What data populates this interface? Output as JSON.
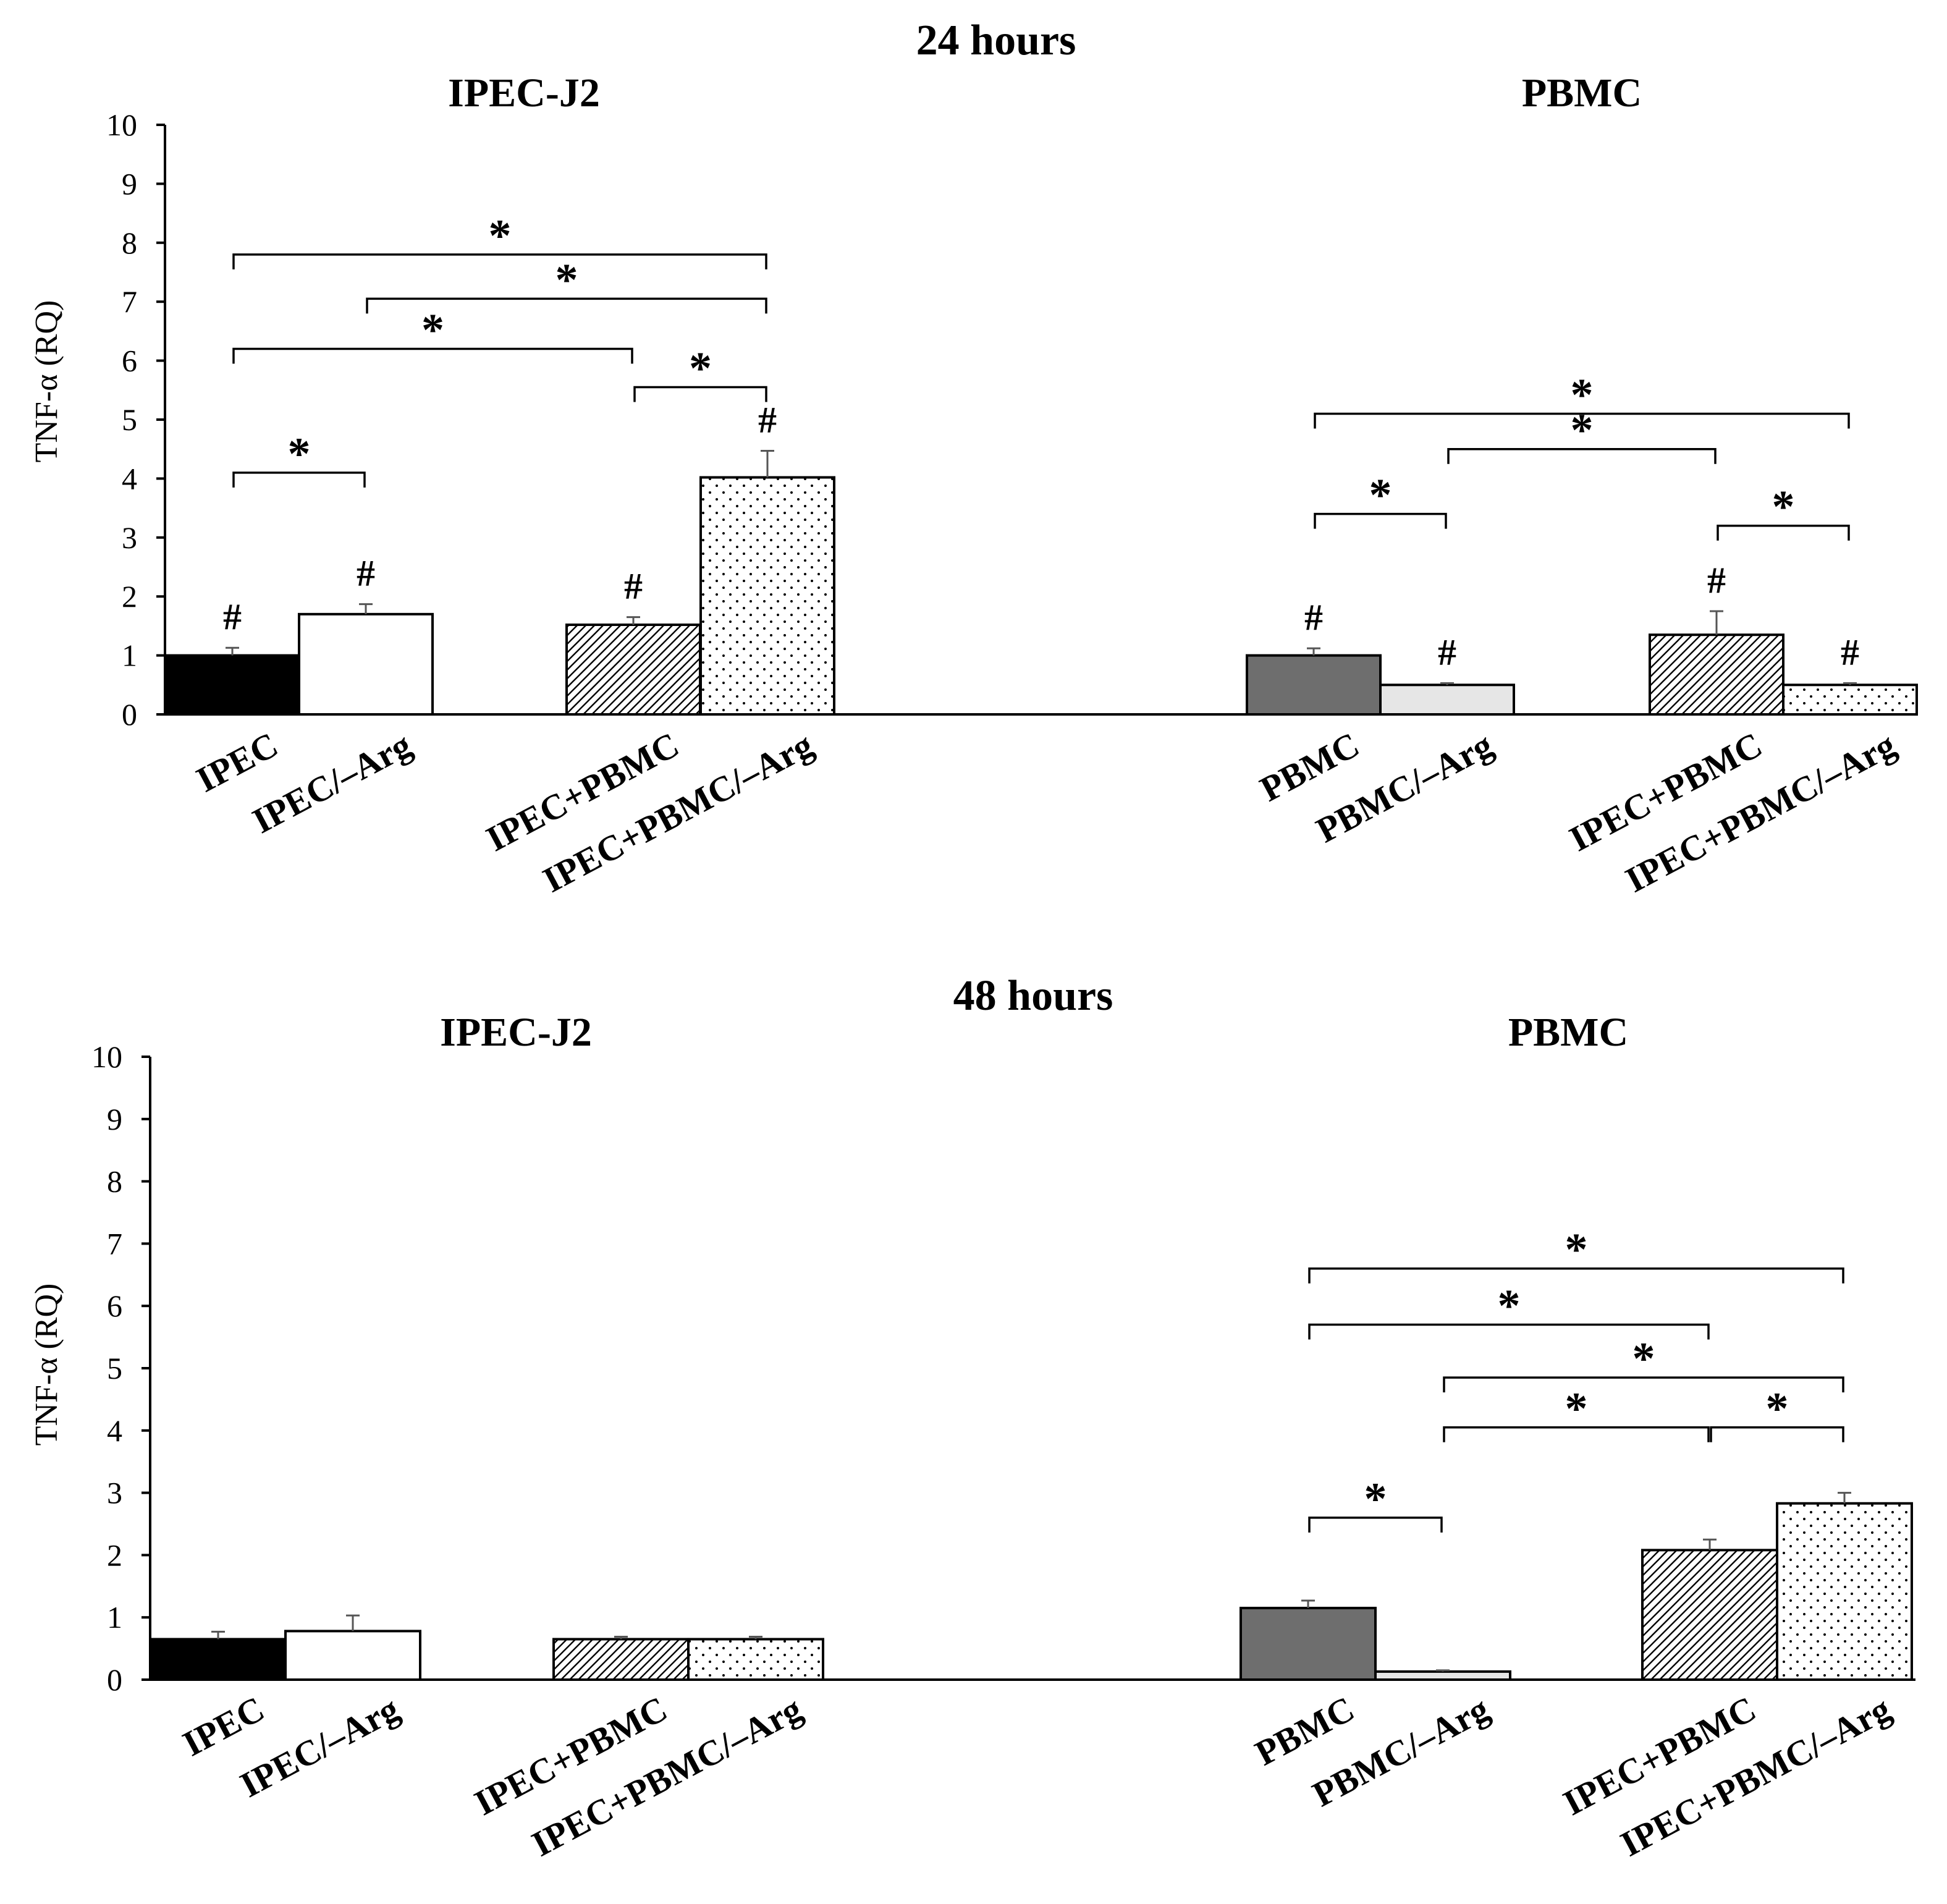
{
  "colors": {
    "black_bar": "#000000",
    "white_bar": "#ffffff",
    "dark_gray_bar": "#6e6e6e",
    "light_gray_bar": "#e6e6e6"
  },
  "chart_data": [
    {
      "type": "bar",
      "panel_title": "24 hours",
      "ylabel": "TNF-α (RQ)",
      "ylim": [
        0,
        10
      ],
      "yticks": [
        "0",
        "1",
        "2",
        "3",
        "4",
        "5",
        "6",
        "7",
        "8",
        "9",
        "10"
      ],
      "groups": [
        {
          "title": "IPEC-J2",
          "bars": [
            {
              "label": "IPEC",
              "value": 1.0,
              "error": 0.13,
              "fill": "black",
              "mark": "#"
            },
            {
              "label": "IPEC/–Arg",
              "value": 1.7,
              "error": 0.17,
              "fill": "white",
              "mark": "#"
            },
            {
              "label": "IPEC+PBMC",
              "value": 1.52,
              "error": 0.13,
              "fill": "hatch",
              "mark": "#"
            },
            {
              "label": "IPEC+PBMC/–Arg",
              "value": 4.02,
              "error": 0.45,
              "fill": "dots",
              "mark": "#"
            }
          ],
          "brackets": [
            {
              "from": 0,
              "to": 1,
              "level": 4.1,
              "mark": "*"
            },
            {
              "from": 2,
              "to": 3,
              "level": 5.55,
              "mark": "*"
            },
            {
              "from": 0,
              "to": 2,
              "level": 6.2,
              "mark": "*"
            },
            {
              "from": 1,
              "to": 3,
              "level": 7.05,
              "mark": "*"
            },
            {
              "from": 0,
              "to": 3,
              "level": 7.8,
              "mark": "*"
            }
          ]
        },
        {
          "title": "PBMC",
          "bars": [
            {
              "label": "PBMC",
              "value": 1.0,
              "error": 0.12,
              "fill": "darkgray",
              "mark": "#"
            },
            {
              "label": "PBMC/–Arg",
              "value": 0.5,
              "error": 0.03,
              "fill": "lightgray",
              "mark": "#"
            },
            {
              "label": "IPEC+PBMC",
              "value": 1.35,
              "error": 0.4,
              "fill": "hatch",
              "mark": "#"
            },
            {
              "label": "IPEC+PBMC/–Arg",
              "value": 0.5,
              "error": 0.03,
              "fill": "dots",
              "mark": "#"
            }
          ],
          "brackets": [
            {
              "from": 0,
              "to": 1,
              "level": 3.4,
              "mark": "*"
            },
            {
              "from": 2,
              "to": 3,
              "level": 3.2,
              "mark": "*"
            },
            {
              "from": 1,
              "to": 2,
              "level": 4.5,
              "mark": "*"
            },
            {
              "from": 0,
              "to": 3,
              "level": 5.1,
              "mark": "*"
            }
          ]
        }
      ]
    },
    {
      "type": "bar",
      "panel_title": "48 hours",
      "ylabel": "TNF-α (RQ)",
      "ylim": [
        0,
        10
      ],
      "yticks": [
        "0",
        "1",
        "2",
        "3",
        "4",
        "5",
        "6",
        "7",
        "8",
        "9",
        "10"
      ],
      "groups": [
        {
          "title": "IPEC-J2",
          "bars": [
            {
              "label": "IPEC",
              "value": 0.65,
              "error": 0.12,
              "fill": "black",
              "mark": ""
            },
            {
              "label": "IPEC/–Arg",
              "value": 0.78,
              "error": 0.25,
              "fill": "white",
              "mark": ""
            },
            {
              "label": "IPEC+PBMC",
              "value": 0.65,
              "error": 0.04,
              "fill": "hatch",
              "mark": ""
            },
            {
              "label": "IPEC+PBMC/–Arg",
              "value": 0.65,
              "error": 0.04,
              "fill": "dots",
              "mark": ""
            }
          ],
          "brackets": []
        },
        {
          "title": "PBMC",
          "bars": [
            {
              "label": "PBMC",
              "value": 1.15,
              "error": 0.12,
              "fill": "darkgray",
              "mark": ""
            },
            {
              "label": "PBMC/–Arg",
              "value": 0.13,
              "error": 0.02,
              "fill": "lightgray",
              "mark": ""
            },
            {
              "label": "IPEC+PBMC",
              "value": 2.08,
              "error": 0.17,
              "fill": "hatch",
              "mark": ""
            },
            {
              "label": "IPEC+PBMC/–Arg",
              "value": 2.83,
              "error": 0.17,
              "fill": "dots",
              "mark": ""
            }
          ],
          "brackets": [
            {
              "from": 0,
              "to": 1,
              "level": 2.6,
              "mark": "*"
            },
            {
              "from": 1,
              "to": 2,
              "level": 4.05,
              "mark": "*"
            },
            {
              "from": 2,
              "to": 3,
              "level": 4.05,
              "mark": "*"
            },
            {
              "from": 1,
              "to": 3,
              "level": 4.85,
              "mark": "*"
            },
            {
              "from": 0,
              "to": 2,
              "level": 5.7,
              "mark": "*"
            },
            {
              "from": 0,
              "to": 3,
              "level": 6.6,
              "mark": "*"
            }
          ]
        }
      ]
    }
  ]
}
